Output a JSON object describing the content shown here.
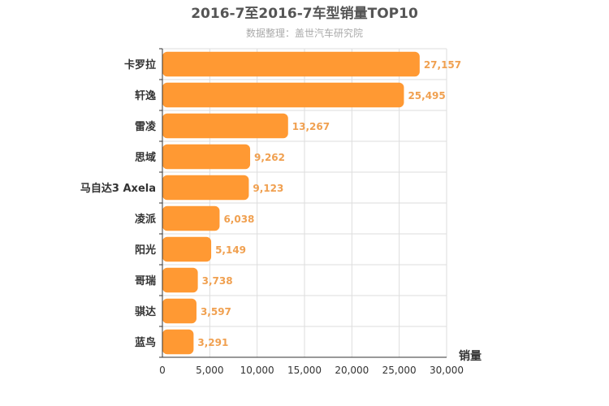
{
  "chart_data": {
    "type": "bar",
    "orientation": "horizontal",
    "title": "2016-7至2016-7车型销量TOP10",
    "subtitle": "数据整理：盖世汽车研究院",
    "xlabel": "销量",
    "ylabel": "",
    "xlim": [
      0,
      30000
    ],
    "xticks": [
      0,
      5000,
      10000,
      15000,
      20000,
      25000,
      30000
    ],
    "xtick_labels": [
      "0",
      "5,000",
      "10,000",
      "15,000",
      "20,000",
      "25,000",
      "30,000"
    ],
    "grid": true,
    "categories": [
      "卡罗拉",
      "轩逸",
      "雷凌",
      "思域",
      "马自达3 Axela",
      "凌派",
      "阳光",
      "哥瑞",
      "骐达",
      "蓝鸟"
    ],
    "values": [
      27157,
      25495,
      13267,
      9262,
      9123,
      6038,
      5149,
      3738,
      3597,
      3291
    ],
    "value_labels": [
      "27,157",
      "25,495",
      "13,267",
      "9,262",
      "9,123",
      "6,038",
      "5,149",
      "3,738",
      "3,597",
      "3,291"
    ],
    "bar_color": "#ff9933",
    "label_color": "#f0a050"
  }
}
